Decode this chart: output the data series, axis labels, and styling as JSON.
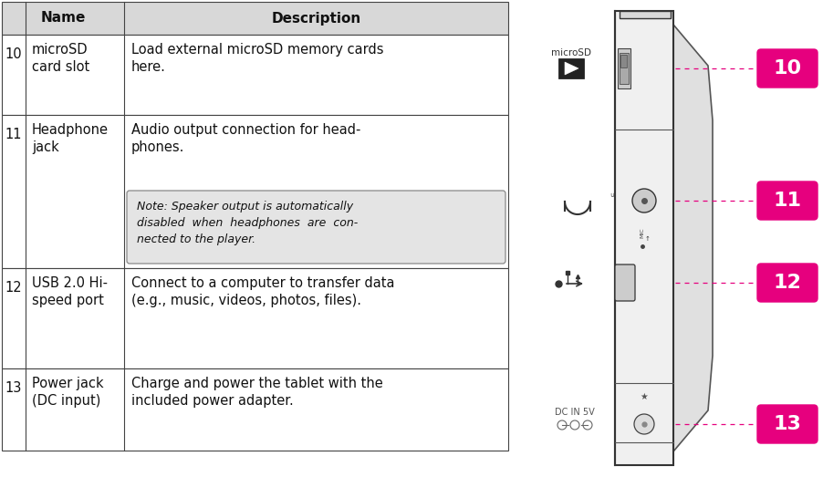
{
  "bg_color": "#ffffff",
  "header_bg": "#d8d8d8",
  "border_color": "#444444",
  "note_bg": "#e4e4e4",
  "magenta": "#e6007e",
  "rows": [
    {
      "num": "10",
      "name": "microSD\ncard slot",
      "desc": "Load external microSD memory cards\nhere.",
      "note": null
    },
    {
      "num": "11",
      "name": "Headphone\njack",
      "desc": "Audio output connection for head-\nphones.",
      "note": "Note: Speaker output is automatically\ndisabled  when  headphones  are  con-\nnected to the player."
    },
    {
      "num": "12",
      "name": "USB 2.0 Hi-\nspeed port",
      "desc": "Connect to a computer to transfer data\n(e.g., music, videos, photos, files).",
      "note": null
    },
    {
      "num": "13",
      "name": "Power jack\n(DC input)",
      "desc": "Charge and power the tablet with the\nincluded power adapter.",
      "note": null
    }
  ]
}
